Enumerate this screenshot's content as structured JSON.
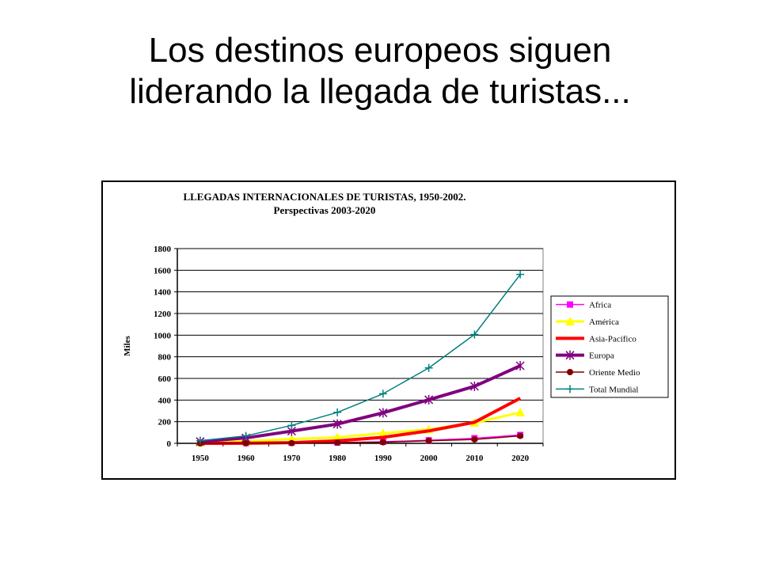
{
  "slide": {
    "title_line1": "Los destinos europeos siguen",
    "title_line2": "liderando la llegada de turistas..."
  },
  "chart_data": {
    "type": "line",
    "title": "LLEGADAS INTERNACIONALES DE TURISTAS, 1950-2002.",
    "subtitle": "Perspectivas 2003-2020",
    "ylabel": "Miles",
    "xlabel": "",
    "categories": [
      "1950",
      "1960",
      "1970",
      "1980",
      "1990",
      "2000",
      "2010",
      "2020"
    ],
    "ylim": [
      0,
      1800
    ],
    "yticks": [
      0,
      200,
      400,
      600,
      800,
      1000,
      1200,
      1400,
      1600,
      1800
    ],
    "grid": true,
    "legend_position": "right",
    "series": [
      {
        "name": "Africa",
        "color": "#ff00ff",
        "marker": "square",
        "width": 1.5,
        "values": [
          2,
          3,
          6,
          7,
          15,
          28,
          47,
          77
        ]
      },
      {
        "name": "América",
        "color": "#ffff00",
        "marker": "triangle",
        "width": 3,
        "values": [
          8,
          18,
          40,
          55,
          93,
          128,
          190,
          285
        ]
      },
      {
        "name": "Asia-Pacífico",
        "color": "#ff0000",
        "marker": "none",
        "width": 4,
        "values": [
          0,
          1,
          6,
          23,
          56,
          115,
          195,
          417
        ]
      },
      {
        "name": "Europa",
        "color": "#800080",
        "marker": "asterisk",
        "width": 4,
        "values": [
          17,
          50,
          113,
          178,
          282,
          403,
          527,
          717
        ]
      },
      {
        "name": "Oriente Medio",
        "color": "#800000",
        "marker": "circle",
        "width": 1.5,
        "values": [
          0,
          1,
          2,
          7,
          10,
          24,
          36,
          69
        ]
      },
      {
        "name": "Total Mundial",
        "color": "#008080",
        "marker": "plus",
        "width": 1.5,
        "values": [
          25,
          69,
          166,
          286,
          458,
          697,
          1006,
          1561
        ]
      }
    ]
  }
}
